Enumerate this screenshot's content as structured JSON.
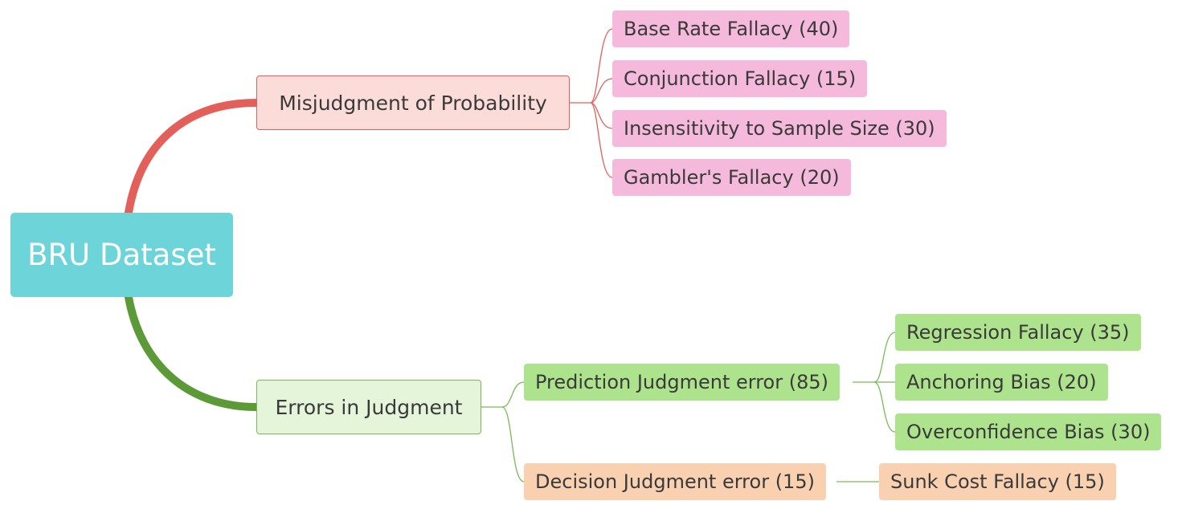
{
  "mindmap": {
    "root": {
      "label": "BRU Dataset",
      "color": "#6dd5d9"
    },
    "branches": [
      {
        "label": "Misjudgment of Probability",
        "color": "#e3605a",
        "fill": "#fbdcd8",
        "children": [
          {
            "label": "Base Rate Fallacy (40)"
          },
          {
            "label": "Conjunction Fallacy (15)"
          },
          {
            "label": "Insensitivity to Sample Size (30)"
          },
          {
            "label": "Gambler's Fallacy (20)"
          }
        ]
      },
      {
        "label": "Errors in Judgment",
        "color": "#5b9a36",
        "fill": "#e4f5da",
        "children": [
          {
            "label": "Prediction Judgment error (85)",
            "fill": "#aee38e",
            "children": [
              {
                "label": "Regression Fallacy (35)"
              },
              {
                "label": "Anchoring Bias (20)"
              },
              {
                "label": "Overconfidence Bias (30)"
              }
            ]
          },
          {
            "label": "Decision Judgment error (15)",
            "fill": "#f9d1b0",
            "children": [
              {
                "label": "Sunk Cost Fallacy (15)"
              }
            ]
          }
        ]
      }
    ]
  }
}
